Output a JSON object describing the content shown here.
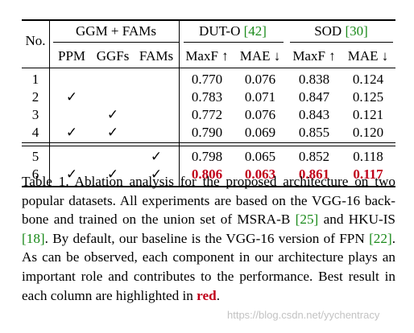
{
  "table": {
    "header": {
      "no": "No.",
      "group_ggm": "GGM + FAMs",
      "group_duto_name": "DUT-O",
      "group_duto_ref": "[42]",
      "group_sod_name": "SOD",
      "group_sod_ref": "[30]",
      "sub": [
        "PPM",
        "GGFs",
        "FAMs",
        "MaxF ↑",
        "MAE ↓",
        "MaxF ↑",
        "MAE ↓"
      ]
    },
    "columns": [
      "No.",
      "PPM",
      "GGFs",
      "FAMs",
      "DUT-O MaxF",
      "DUT-O MAE",
      "SOD MaxF",
      "SOD MAE"
    ],
    "rows": [
      {
        "no": "1",
        "ppm": "",
        "ggfs": "",
        "fams": "",
        "duto_maxf": "0.770",
        "duto_mae": "0.076",
        "sod_maxf": "0.838",
        "sod_mae": "0.124"
      },
      {
        "no": "2",
        "ppm": "✓",
        "ggfs": "",
        "fams": "",
        "duto_maxf": "0.783",
        "duto_mae": "0.071",
        "sod_maxf": "0.847",
        "sod_mae": "0.125"
      },
      {
        "no": "3",
        "ppm": "",
        "ggfs": "✓",
        "fams": "",
        "duto_maxf": "0.772",
        "duto_mae": "0.076",
        "sod_maxf": "0.843",
        "sod_mae": "0.121"
      },
      {
        "no": "4",
        "ppm": "✓",
        "ggfs": "✓",
        "fams": "",
        "duto_maxf": "0.790",
        "duto_mae": "0.069",
        "sod_maxf": "0.855",
        "sod_mae": "0.120"
      },
      {
        "no": "5",
        "ppm": "",
        "ggfs": "",
        "fams": "✓",
        "duto_maxf": "0.798",
        "duto_mae": "0.065",
        "sod_maxf": "0.852",
        "sod_mae": "0.118"
      },
      {
        "no": "6",
        "ppm": "✓",
        "ggfs": "✓",
        "fams": "✓",
        "duto_maxf": "0.806",
        "duto_mae": "0.063",
        "sod_maxf": "0.861",
        "sod_mae": "0.117"
      }
    ],
    "best_row": 5,
    "highlight_color": "#c0001a",
    "citation_color": "#1a8a1a"
  },
  "caption": {
    "lines": [
      [
        "Table 1. Ablation analysis for the proposed architecture on two"
      ],
      [
        "popular datasets. All experiments are based on the VGG-16 back-"
      ],
      [
        "bone and trained on the union set of MSRA-B ",
        "[25]",
        " and HKU-IS"
      ],
      [
        "[18]",
        ". By default, our baseline is the VGG-16 version of FPN ",
        "[22]",
        "."
      ],
      [
        "As can be observed, each component in our architecture plays an"
      ],
      [
        "important role and contributes to the performance. Best result in"
      ],
      [
        "each column are highlighted in ",
        "red",
        "."
      ]
    ]
  },
  "watermark": "https://blog.csdn.net/yychentracy"
}
